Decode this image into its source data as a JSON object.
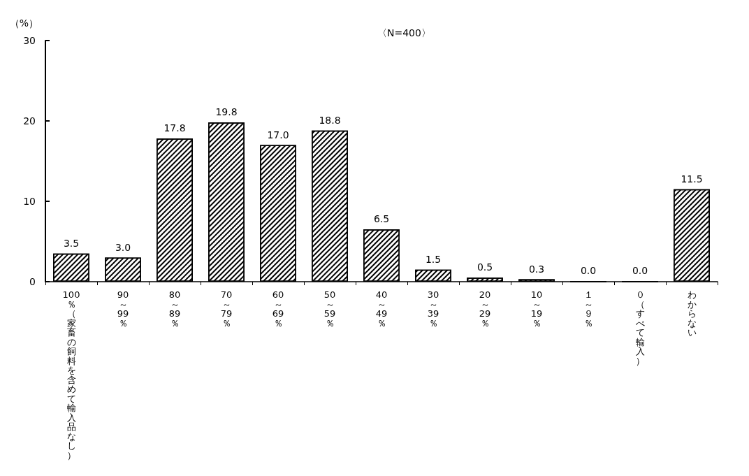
{
  "chart_data": {
    "type": "bar",
    "ylabel": "（%）",
    "annotations": [
      "〈N=400〉"
    ],
    "categories": [
      "100％（家畜の飼料を含めて輸入品なし）",
      "90～99％",
      "80～89％",
      "70～79％",
      "60～69％",
      "50～59％",
      "40～49％",
      "30～39％",
      "20～29％",
      "10～19％",
      "１～９％",
      "０（すべて輸入）",
      "わからない"
    ],
    "values": [
      3.5,
      3.0,
      17.8,
      19.8,
      17.0,
      18.8,
      6.5,
      1.5,
      0.5,
      0.3,
      0.0,
      0.0,
      11.5
    ],
    "value_labels": [
      "3.5",
      "3.0",
      "17.8",
      "19.8",
      "17.0",
      "18.8",
      "6.5",
      "1.5",
      "0.5",
      "0.3",
      "0.0",
      "0.0",
      "11.5"
    ],
    "color": "#ffffff",
    "ylim": [
      0,
      30
    ],
    "yticks": [
      0,
      10,
      20,
      30
    ],
    "grid": false
  }
}
